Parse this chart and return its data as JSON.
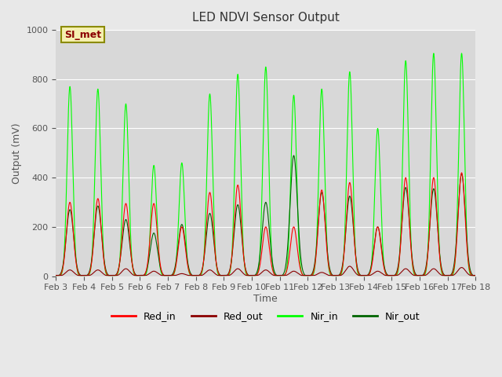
{
  "title": "LED NDVI Sensor Output",
  "ylabel": "Output (mV)",
  "xlabel": "Time",
  "ylim": [
    0,
    1000
  ],
  "background_color": "#e8e8e8",
  "plot_bg_color": "#d8d8d8",
  "annotation_text": "SI_met",
  "annotation_bg": "#f5f0b0",
  "annotation_border": "#8b8b00",
  "legend_entries": [
    "Red_in",
    "Red_out",
    "Nir_in",
    "Nir_out"
  ],
  "line_colors": [
    "#ff0000",
    "#8b0000",
    "#00ff00",
    "#006400"
  ],
  "xtick_labels": [
    "Feb 3",
    "Feb 4",
    "Feb 5",
    "Feb 6",
    "Feb 7",
    "Feb 8",
    "Feb 9",
    "Feb 10",
    "Feb 11",
    "Feb 12",
    "Feb 13",
    "Feb 14",
    "Feb 15",
    "Feb 16",
    "Feb 17",
    "Feb 18"
  ],
  "peaks": [
    {
      "day": 0.5,
      "red_in": 300,
      "red_out": 25,
      "nir_in": 770,
      "nir_out": 270
    },
    {
      "day": 1.5,
      "red_in": 315,
      "red_out": 25,
      "nir_in": 760,
      "nir_out": 285
    },
    {
      "day": 2.5,
      "red_in": 295,
      "red_out": 30,
      "nir_in": 700,
      "nir_out": 230
    },
    {
      "day": 3.5,
      "red_in": 295,
      "red_out": 20,
      "nir_in": 450,
      "nir_out": 175
    },
    {
      "day": 4.5,
      "red_in": 200,
      "red_out": 10,
      "nir_in": 460,
      "nir_out": 210
    },
    {
      "day": 5.5,
      "red_in": 340,
      "red_out": 25,
      "nir_in": 740,
      "nir_out": 255
    },
    {
      "day": 6.5,
      "red_in": 370,
      "red_out": 30,
      "nir_in": 820,
      "nir_out": 290
    },
    {
      "day": 7.5,
      "red_in": 200,
      "red_out": 25,
      "nir_in": 850,
      "nir_out": 300
    },
    {
      "day": 8.5,
      "red_in": 200,
      "red_out": 20,
      "nir_in": 735,
      "nir_out": 490
    },
    {
      "day": 9.5,
      "red_in": 350,
      "red_out": 15,
      "nir_in": 760,
      "nir_out": 340
    },
    {
      "day": 10.5,
      "red_in": 380,
      "red_out": 40,
      "nir_in": 830,
      "nir_out": 325
    },
    {
      "day": 11.5,
      "red_in": 200,
      "red_out": 20,
      "nir_in": 600,
      "nir_out": 200
    },
    {
      "day": 12.5,
      "red_in": 400,
      "red_out": 30,
      "nir_in": 875,
      "nir_out": 360
    },
    {
      "day": 13.5,
      "red_in": 400,
      "red_out": 30,
      "nir_in": 905,
      "nir_out": 355
    },
    {
      "day": 14.5,
      "red_in": 420,
      "red_out": 35,
      "nir_in": 905,
      "nir_out": 415
    }
  ]
}
